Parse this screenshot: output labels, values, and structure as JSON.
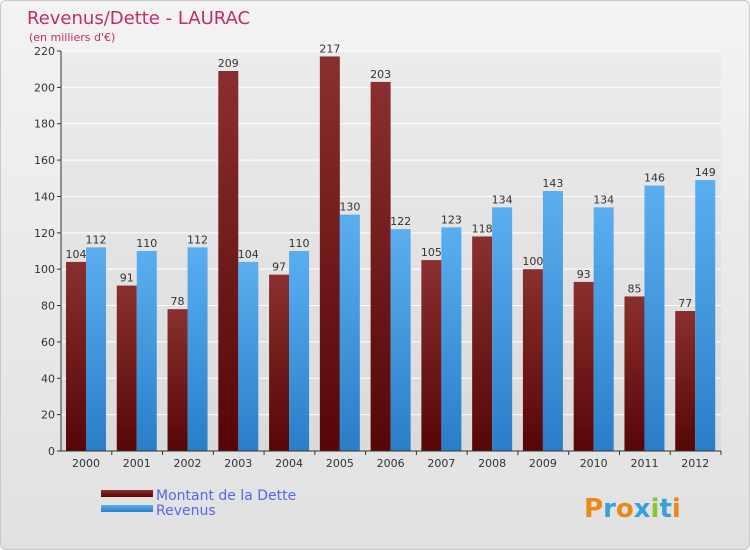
{
  "chart_data": {
    "type": "bar",
    "title": "Revenus/Dette - LAURAC",
    "subtitle": "(en milliers d'€)",
    "xlabel": "",
    "ylabel": "",
    "ylim": [
      0,
      220
    ],
    "yticks": [
      0,
      20,
      40,
      60,
      80,
      100,
      120,
      140,
      160,
      180,
      200,
      220
    ],
    "categories": [
      "2000",
      "2001",
      "2002",
      "2003",
      "2004",
      "2005",
      "2006",
      "2007",
      "2008",
      "2009",
      "2010",
      "2011",
      "2012"
    ],
    "series": [
      {
        "name": "Montant de la Dette",
        "color": "#7a1e1e",
        "values": [
          104,
          91,
          78,
          209,
          97,
          217,
          203,
          105,
          118,
          100,
          93,
          85,
          77
        ]
      },
      {
        "name": "Revenus",
        "color": "#3f9be0",
        "values": [
          112,
          110,
          112,
          104,
          110,
          130,
          122,
          123,
          134,
          143,
          134,
          146,
          149
        ]
      }
    ],
    "grid": true,
    "legend": "bottom-left"
  },
  "colors": {
    "title": "#c22a6a",
    "legend_text": "#5566ee",
    "axis_text": "#333333",
    "grid": "#ffffff"
  },
  "logo": {
    "text": "Proxiti"
  }
}
